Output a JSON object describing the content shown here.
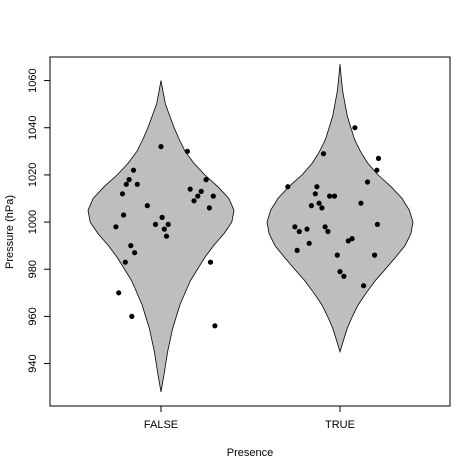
{
  "chart_data": {
    "type": "violin",
    "xlabel": "Presence",
    "ylabel": "Pressure (hPa)",
    "categories": [
      "FALSE",
      "TRUE"
    ],
    "ylim": [
      922,
      1070
    ],
    "yticks": [
      940,
      960,
      980,
      1000,
      1020,
      1040,
      1060
    ],
    "grid": false,
    "legend": "none",
    "colors": {
      "violin_fill": "#bebebe",
      "points": "#000000",
      "frame": "#000000"
    },
    "violins": [
      {
        "category": "FALSE",
        "profile": [
          [
            928,
            0
          ],
          [
            935,
            0.04
          ],
          [
            945,
            0.09
          ],
          [
            955,
            0.16
          ],
          [
            965,
            0.26
          ],
          [
            975,
            0.4
          ],
          [
            985,
            0.6
          ],
          [
            990,
            0.72
          ],
          [
            995,
            0.86
          ],
          [
            1000,
            0.97
          ],
          [
            1005,
            1.0
          ],
          [
            1010,
            0.93
          ],
          [
            1015,
            0.78
          ],
          [
            1020,
            0.6
          ],
          [
            1025,
            0.45
          ],
          [
            1030,
            0.33
          ],
          [
            1035,
            0.25
          ],
          [
            1040,
            0.18
          ],
          [
            1045,
            0.12
          ],
          [
            1050,
            0.06
          ],
          [
            1055,
            0.03
          ],
          [
            1060,
            0
          ]
        ],
        "points": [
          [
            -0.82,
            998
          ],
          [
            -0.77,
            970
          ],
          [
            -0.68,
            1003
          ],
          [
            -0.7,
            1012
          ],
          [
            -0.63,
            1016
          ],
          [
            -0.58,
            1018
          ],
          [
            -0.5,
            1022
          ],
          [
            -0.43,
            1016
          ],
          [
            -0.55,
            990
          ],
          [
            -0.48,
            987
          ],
          [
            -0.53,
            960
          ],
          [
            -0.65,
            983
          ],
          [
            -0.25,
            1007
          ],
          [
            0.0,
            1032
          ],
          [
            -0.1,
            999
          ],
          [
            0.02,
            1002
          ],
          [
            0.06,
            997
          ],
          [
            0.1,
            994
          ],
          [
            0.13,
            999
          ],
          [
            0.48,
            1030
          ],
          [
            0.53,
            1014
          ],
          [
            0.6,
            1009
          ],
          [
            0.67,
            1011
          ],
          [
            0.73,
            1013
          ],
          [
            0.82,
            1018
          ],
          [
            0.88,
            1006
          ],
          [
            0.95,
            1011
          ],
          [
            0.9,
            983
          ],
          [
            0.98,
            956
          ]
        ]
      },
      {
        "category": "TRUE",
        "profile": [
          [
            945,
            0
          ],
          [
            950,
            0.05
          ],
          [
            955,
            0.1
          ],
          [
            960,
            0.17
          ],
          [
            965,
            0.25
          ],
          [
            970,
            0.36
          ],
          [
            975,
            0.48
          ],
          [
            980,
            0.62
          ],
          [
            985,
            0.76
          ],
          [
            990,
            0.89
          ],
          [
            995,
            0.97
          ],
          [
            1000,
            1.0
          ],
          [
            1005,
            0.95
          ],
          [
            1010,
            0.85
          ],
          [
            1015,
            0.7
          ],
          [
            1020,
            0.52
          ],
          [
            1025,
            0.38
          ],
          [
            1030,
            0.28
          ],
          [
            1035,
            0.2
          ],
          [
            1040,
            0.15
          ],
          [
            1045,
            0.1
          ],
          [
            1050,
            0.07
          ],
          [
            1055,
            0.04
          ],
          [
            1060,
            0.02
          ],
          [
            1067,
            0
          ]
        ],
        "points": [
          [
            -0.95,
            1015
          ],
          [
            -0.82,
            998
          ],
          [
            -0.74,
            996
          ],
          [
            -0.78,
            988
          ],
          [
            -0.6,
            997
          ],
          [
            -0.56,
            991
          ],
          [
            -0.52,
            1007
          ],
          [
            -0.45,
            1012
          ],
          [
            -0.42,
            1015
          ],
          [
            -0.38,
            1008
          ],
          [
            -0.33,
            1006
          ],
          [
            -0.27,
            998
          ],
          [
            -0.22,
            996
          ],
          [
            -0.19,
            1011
          ],
          [
            -0.1,
            1011
          ],
          [
            -0.3,
            1029
          ],
          [
            -0.05,
            986
          ],
          [
            0.0,
            979
          ],
          [
            0.07,
            977
          ],
          [
            0.15,
            992
          ],
          [
            0.22,
            993
          ],
          [
            0.38,
            1008
          ],
          [
            0.5,
            1017
          ],
          [
            0.67,
            1022
          ],
          [
            0.7,
            1027
          ],
          [
            0.43,
            973
          ],
          [
            0.63,
            986
          ],
          [
            0.68,
            999
          ],
          [
            0.27,
            1040
          ]
        ]
      }
    ]
  }
}
